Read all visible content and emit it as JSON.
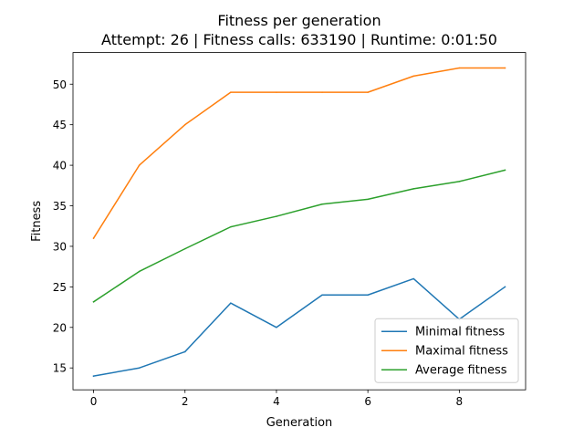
{
  "chart_data": {
    "type": "line",
    "title": "Fitness per generation",
    "subtitle": "Attempt: 26 | Fitness calls: 633190 | Runtime: 0:01:50",
    "xlabel": "Generation",
    "ylabel": "Fitness",
    "x": [
      0,
      1,
      2,
      3,
      4,
      5,
      6,
      7,
      8,
      9
    ],
    "xlim": [
      -0.45,
      9.45
    ],
    "ylim": [
      12.3,
      53.9
    ],
    "xticks": [
      0,
      2,
      4,
      6,
      8
    ],
    "yticks": [
      15,
      20,
      25,
      30,
      35,
      40,
      45,
      50
    ],
    "grid": false,
    "legend_position": "lower-right",
    "series": [
      {
        "name": "Minimal fitness",
        "color": "#1f77b4",
        "values": [
          14,
          15,
          17,
          23,
          20,
          24,
          24,
          26,
          21,
          25
        ]
      },
      {
        "name": "Maximal fitness",
        "color": "#ff7f0e",
        "values": [
          31,
          40,
          45,
          49,
          49,
          49,
          49,
          51,
          52,
          52
        ]
      },
      {
        "name": "Average fitness",
        "color": "#2ca02c",
        "values": [
          23.15,
          26.9,
          29.7,
          32.4,
          33.7,
          35.2,
          35.8,
          37.1,
          38.0,
          39.4
        ]
      }
    ]
  }
}
